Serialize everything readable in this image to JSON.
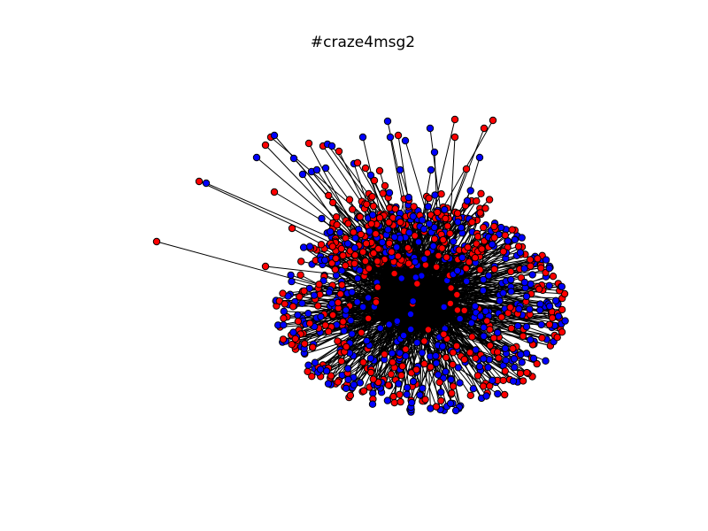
{
  "figure": {
    "title": "#craze4msg2",
    "node_colors": {
      "red": "#ff0000",
      "blue": "#0000ff"
    },
    "edge_color": "#000000",
    "background": "#ffffff"
  }
}
